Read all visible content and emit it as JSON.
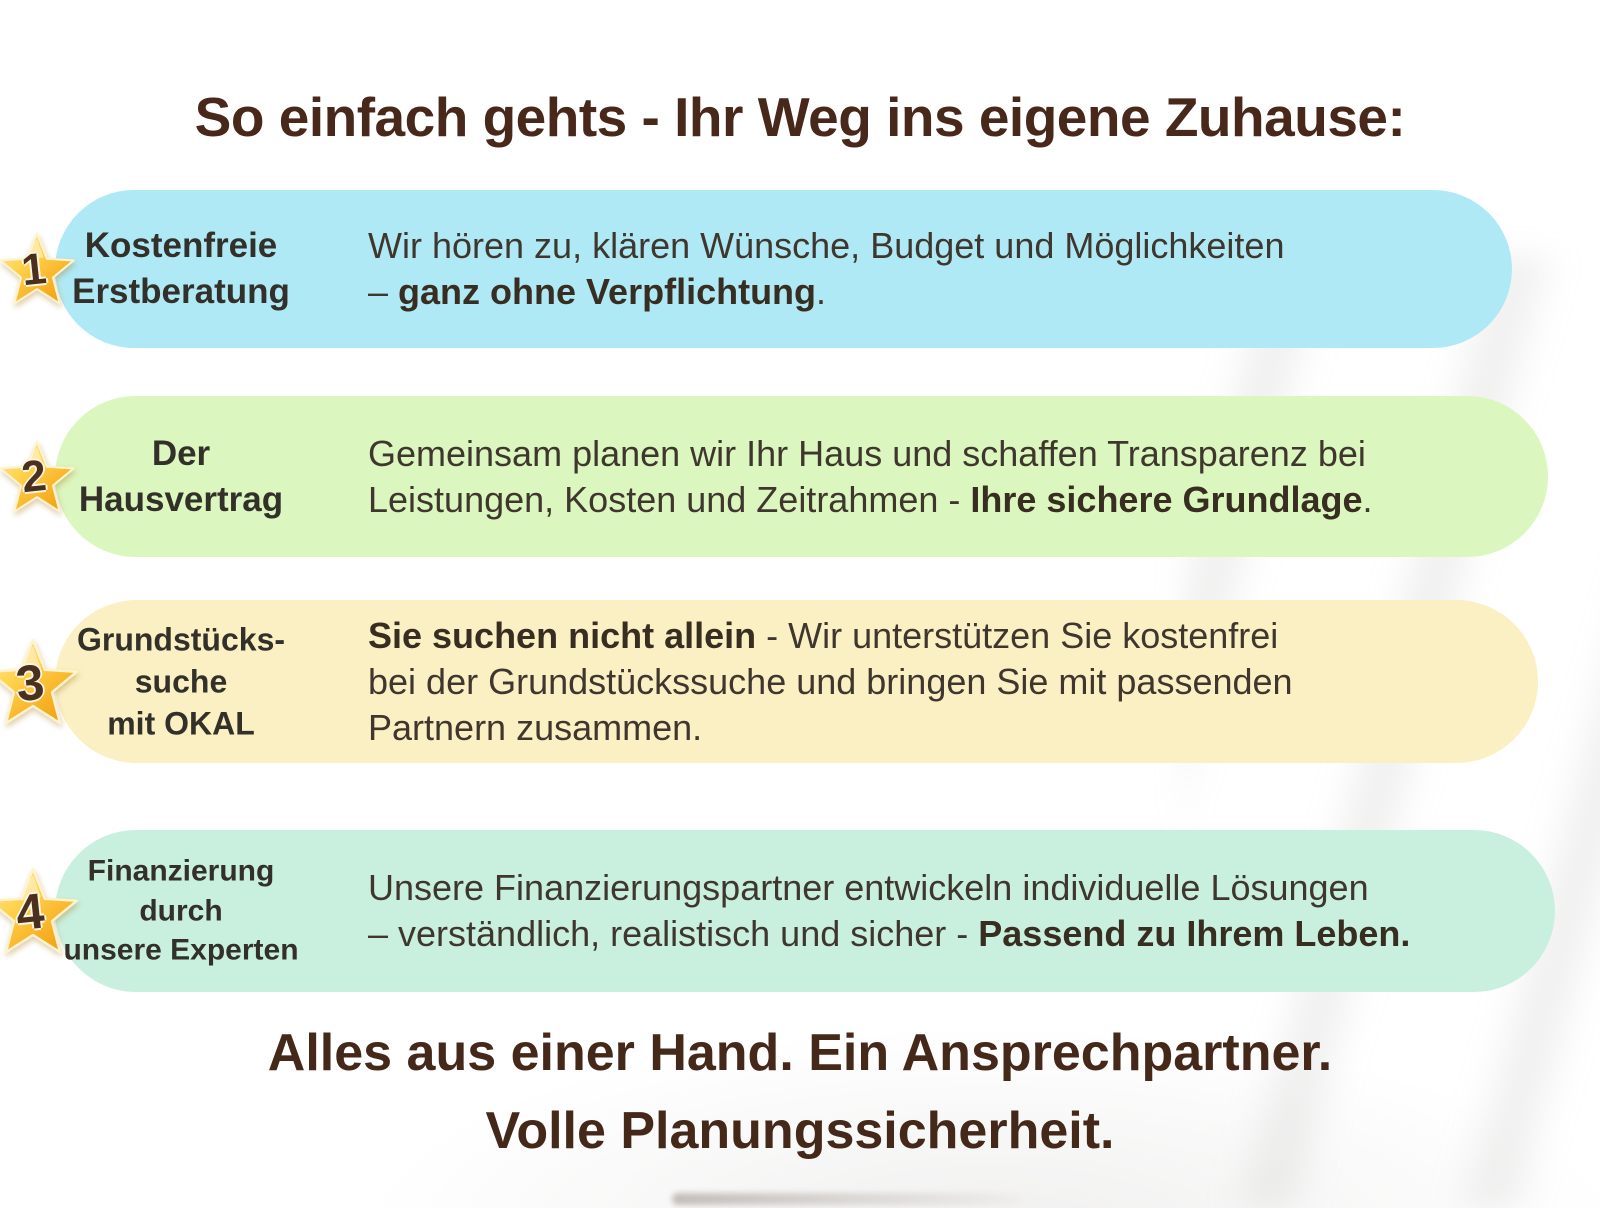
{
  "title": "So einfach gehts - Ihr Weg ins eigene Zuhause:",
  "colors": {
    "title_text": "#47281a",
    "body_text": "#3f372e",
    "footer_text": "#44291a",
    "star_gold_light": "#fde9a2",
    "star_gold_mid": "#ffcf3f",
    "star_gold_deep": "#ef9f15",
    "step1_bg": "#afe9f6",
    "step2_bg": "#dbf6be",
    "step3_bg": "#faf0c3",
    "step4_bg": "#c9f0df"
  },
  "steps": [
    {
      "number": "1",
      "label_lines": [
        "Kostenfreie",
        "Erstberatung"
      ],
      "color": "#afe9f6",
      "description": [
        {
          "text": "Wir hören zu, klären Wünsche, Budget und Möglichkeiten\n– ",
          "bold": false
        },
        {
          "text": "ganz ohne Verpflichtung",
          "bold": true
        },
        {
          "text": ".",
          "bold": false
        }
      ]
    },
    {
      "number": "2",
      "label_lines": [
        "Der",
        "Hausvertrag"
      ],
      "color": "#dbf6be",
      "description": [
        {
          "text": "Gemeinsam planen wir Ihr Haus und schaffen Transparenz bei\nLeistungen, Kosten und Zeitrahmen - ",
          "bold": false
        },
        {
          "text": "Ihre sichere Grundlage",
          "bold": true
        },
        {
          "text": ".",
          "bold": false
        }
      ]
    },
    {
      "number": "3",
      "label_lines": [
        "Grundstücks-",
        "suche",
        "mit OKAL"
      ],
      "color": "#faf0c3",
      "description": [
        {
          "text": "Sie suchen nicht allein",
          "bold": true
        },
        {
          "text": " - Wir unterstützen Sie kostenfrei\nbei der Grundstückssuche und bringen Sie mit passenden\nPartnern zusammen.",
          "bold": false
        }
      ]
    },
    {
      "number": "4",
      "label_lines": [
        "Finanzierung",
        "durch",
        "unsere Experten"
      ],
      "color": "#c9f0df",
      "description": [
        {
          "text": "Unsere Finanzierungspartner entwickeln individuelle Lösungen\n– verständlich, realistisch und sicher - ",
          "bold": false
        },
        {
          "text": "Passend zu Ihrem Leben.",
          "bold": true
        }
      ]
    }
  ],
  "footer": {
    "line1": "Alles aus einer Hand. Ein Ansprechpartner.",
    "line2": "Volle Planungssicherheit."
  }
}
